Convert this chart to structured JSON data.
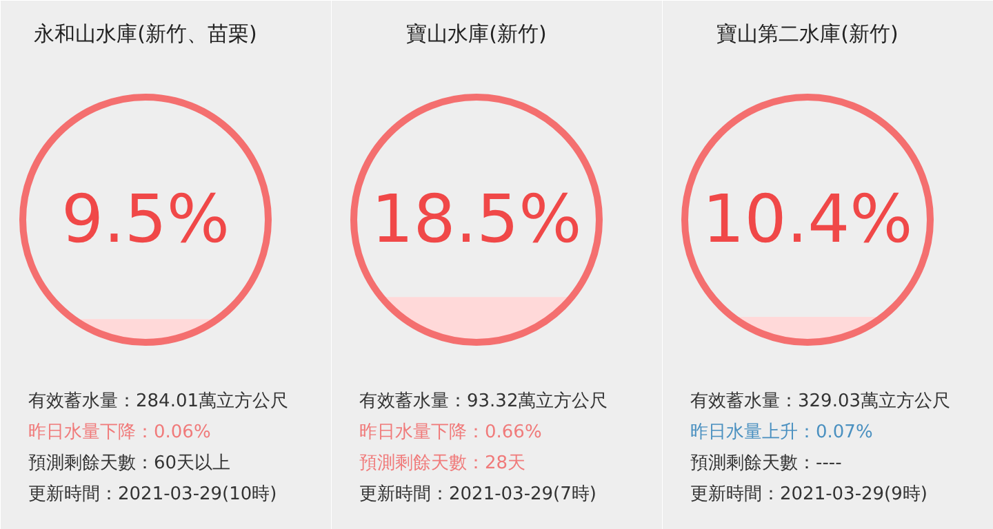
{
  "chart_data": [
    {
      "type": "other",
      "title": "永和山水庫(新竹、苗栗)",
      "values": [
        9.5
      ],
      "value_labels": [
        "9.5%"
      ],
      "annotations": [
        "有效蓄水量：284.01萬立方公尺",
        "昨日水量下降：0.06%",
        "預測剩餘天數：60天以上",
        "更新時間：2021-03-29(10時)"
      ]
    },
    {
      "type": "other",
      "title": "寶山水庫(新竹)",
      "values": [
        18.5
      ],
      "value_labels": [
        "18.5%"
      ],
      "annotations": [
        "有效蓄水量：93.32萬立方公尺",
        "昨日水量下降：0.66%",
        "預測剩餘天數：28天",
        "更新時間：2021-03-29(7時)"
      ]
    },
    {
      "type": "other",
      "title": "寶山第二水庫(新竹)",
      "values": [
        10.4
      ],
      "value_labels": [
        "10.4%"
      ],
      "annotations": [
        "有效蓄水量：329.03萬立方公尺",
        "昨日水量上升：0.07%",
        "預測剩餘天數：----",
        "更新時間：2021-03-29(9時)"
      ]
    }
  ]
}
